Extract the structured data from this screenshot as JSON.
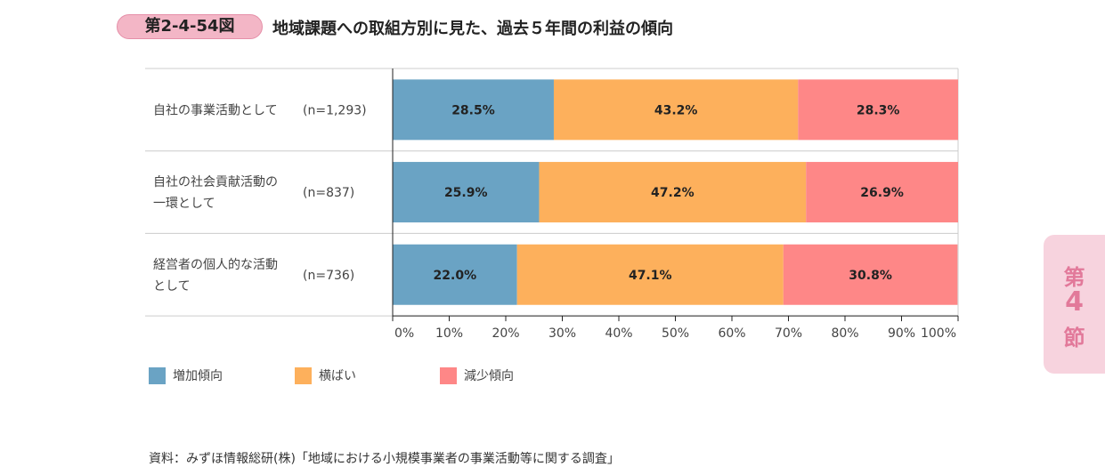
{
  "figure": {
    "badge": "第2-4-54図",
    "title": "地域課題への取組方別に見た、過去５年間の利益の傾向"
  },
  "side_tab": {
    "line1": "第",
    "line2": "4",
    "line3": "節"
  },
  "source_note": "資料：みずほ情報総研(株)「地域における小規模事業者の事業活動等に関する調査」",
  "colors": {
    "increase": "#6aa3c4",
    "flat": "#fdb05c",
    "decrease": "#fe8787",
    "grid": "#cccccc",
    "axis": "#222222"
  },
  "chart_data": {
    "type": "bar",
    "orientation": "horizontal-stacked-100",
    "categories": [
      {
        "lines": [
          "自社の事業活動として"
        ],
        "n": "(n=1,293)"
      },
      {
        "lines": [
          "自社の社会貢献活動の",
          "一環として"
        ],
        "n": "(n=837)"
      },
      {
        "lines": [
          "経営者の個人的な活動",
          "として"
        ],
        "n": "(n=736)"
      }
    ],
    "series": [
      {
        "name": "増加傾向",
        "color": "#6aa3c4",
        "values": [
          28.5,
          25.9,
          22.0
        ],
        "labels": [
          "28.5%",
          "25.9%",
          "22.0%"
        ]
      },
      {
        "name": "横ばい",
        "color": "#fdb05c",
        "values": [
          43.2,
          47.2,
          47.1
        ],
        "labels": [
          "43.2%",
          "47.2%",
          "47.1%"
        ]
      },
      {
        "name": "減少傾向",
        "color": "#fe8787",
        "values": [
          28.3,
          26.9,
          30.8
        ],
        "labels": [
          "28.3%",
          "26.9%",
          "30.8%"
        ]
      }
    ],
    "xlim": [
      0,
      100
    ],
    "ticks": [
      0,
      10,
      20,
      30,
      40,
      50,
      60,
      70,
      80,
      90,
      100
    ],
    "tick_labels": [
      "0%",
      "10%",
      "20%",
      "30%",
      "40%",
      "50%",
      "60%",
      "70%",
      "80%",
      "90%",
      "100%"
    ],
    "legend_position": "bottom-left"
  }
}
